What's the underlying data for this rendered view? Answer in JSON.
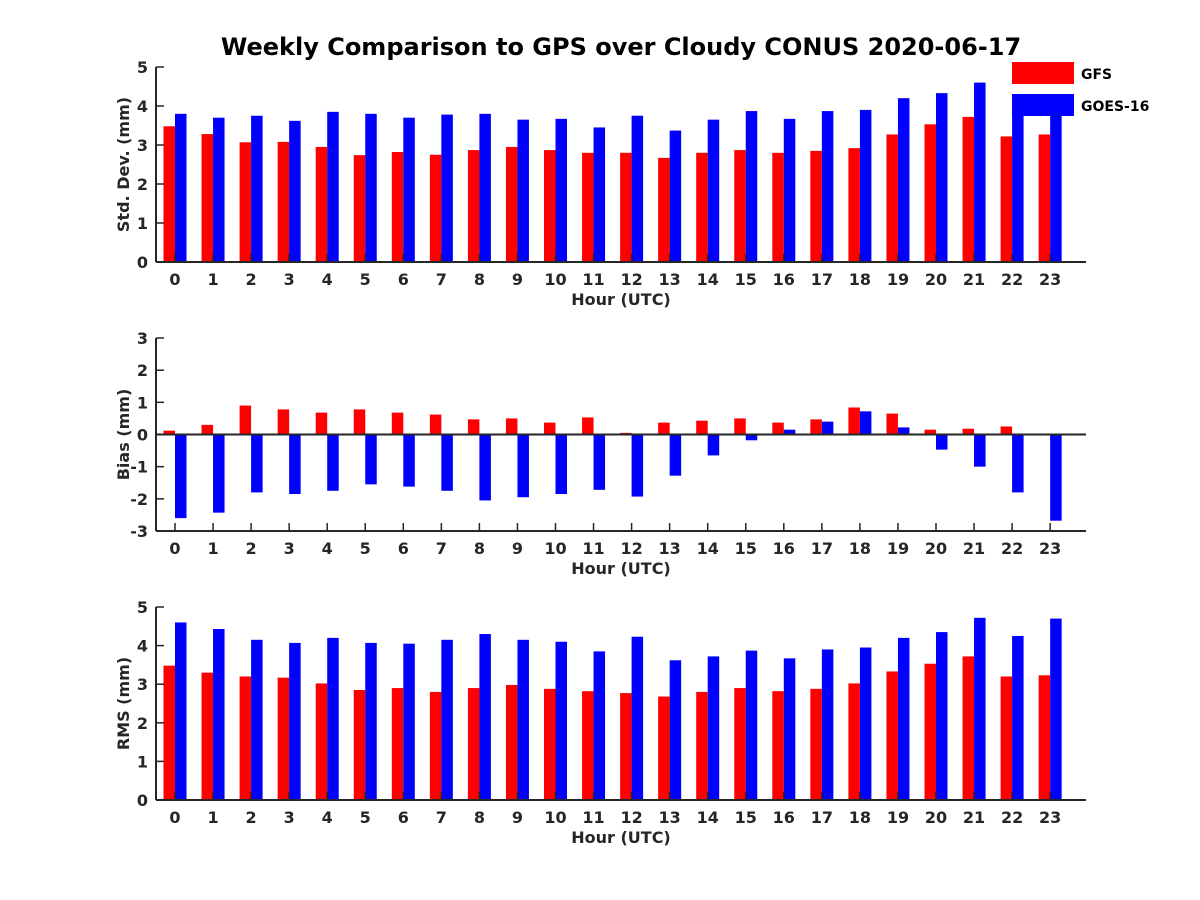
{
  "figure": {
    "title": "Weekly Comparison to GPS over Cloudy CONUS 2020-06-17"
  },
  "legend": {
    "entries": [
      {
        "label": "GFS",
        "color": "#ff0000"
      },
      {
        "label": "GOES-16",
        "color": "#0000ff"
      }
    ],
    "placement": "top-right"
  },
  "chart_data": [
    {
      "type": "bar",
      "xlabel": "Hour (UTC)",
      "ylabel": "Std. Dev. (mm)",
      "ylim": [
        0,
        5
      ],
      "yticks": [
        0,
        1,
        2,
        3,
        4,
        5
      ],
      "categories": [
        "0",
        "1",
        "2",
        "3",
        "4",
        "5",
        "6",
        "7",
        "8",
        "9",
        "10",
        "11",
        "12",
        "13",
        "14",
        "15",
        "16",
        "17",
        "18",
        "19",
        "20",
        "21",
        "22",
        "23"
      ],
      "series": [
        {
          "name": "GFS",
          "color": "#ff0000",
          "values": [
            3.48,
            3.28,
            3.07,
            3.08,
            2.95,
            2.74,
            2.82,
            2.75,
            2.87,
            2.95,
            2.87,
            2.8,
            2.8,
            2.67,
            2.8,
            2.87,
            2.8,
            2.85,
            2.92,
            3.27,
            3.53,
            3.72,
            3.22,
            3.27
          ]
        },
        {
          "name": "GOES-16",
          "color": "#0000ff",
          "values": [
            3.8,
            3.7,
            3.75,
            3.62,
            3.85,
            3.8,
            3.7,
            3.78,
            3.8,
            3.65,
            3.67,
            3.45,
            3.75,
            3.37,
            3.65,
            3.87,
            3.67,
            3.87,
            3.9,
            4.2,
            4.33,
            4.6,
            3.87,
            3.8
          ]
        }
      ],
      "grid": false
    },
    {
      "type": "bar",
      "xlabel": "Hour (UTC)",
      "ylabel": "Bias (mm)",
      "ylim": [
        -3,
        3
      ],
      "yticks": [
        -3,
        -2,
        -1,
        0,
        1,
        2,
        3
      ],
      "categories": [
        "0",
        "1",
        "2",
        "3",
        "4",
        "5",
        "6",
        "7",
        "8",
        "9",
        "10",
        "11",
        "12",
        "13",
        "14",
        "15",
        "16",
        "17",
        "18",
        "19",
        "20",
        "21",
        "22",
        "23"
      ],
      "series": [
        {
          "name": "GFS",
          "color": "#ff0000",
          "values": [
            0.12,
            0.3,
            0.9,
            0.78,
            0.68,
            0.78,
            0.68,
            0.62,
            0.47,
            0.5,
            0.37,
            0.53,
            0.05,
            0.37,
            0.43,
            0.5,
            0.37,
            0.47,
            0.84,
            0.65,
            0.15,
            0.18,
            0.25,
            0.0
          ]
        },
        {
          "name": "GOES-16",
          "color": "#0000ff",
          "values": [
            -2.6,
            -2.43,
            -1.8,
            -1.85,
            -1.75,
            -1.55,
            -1.62,
            -1.75,
            -2.05,
            -1.95,
            -1.85,
            -1.72,
            -1.93,
            -1.28,
            -0.65,
            -0.18,
            0.15,
            0.4,
            0.72,
            0.22,
            -0.47,
            -1.0,
            -1.8,
            -2.68
          ]
        }
      ],
      "grid": false
    },
    {
      "type": "bar",
      "xlabel": "Hour (UTC)",
      "ylabel": "RMS (mm)",
      "ylim": [
        0,
        5
      ],
      "yticks": [
        0,
        1,
        2,
        3,
        4,
        5
      ],
      "categories": [
        "0",
        "1",
        "2",
        "3",
        "4",
        "5",
        "6",
        "7",
        "8",
        "9",
        "10",
        "11",
        "12",
        "13",
        "14",
        "15",
        "16",
        "17",
        "18",
        "19",
        "20",
        "21",
        "22",
        "23"
      ],
      "series": [
        {
          "name": "GFS",
          "color": "#ff0000",
          "values": [
            3.48,
            3.3,
            3.2,
            3.17,
            3.02,
            2.85,
            2.9,
            2.8,
            2.9,
            2.98,
            2.88,
            2.82,
            2.77,
            2.68,
            2.8,
            2.9,
            2.82,
            2.88,
            3.02,
            3.33,
            3.53,
            3.72,
            3.2,
            3.23
          ]
        },
        {
          "name": "GOES-16",
          "color": "#0000ff",
          "values": [
            4.6,
            4.43,
            4.15,
            4.07,
            4.2,
            4.07,
            4.05,
            4.15,
            4.3,
            4.15,
            4.1,
            3.85,
            4.23,
            3.62,
            3.72,
            3.87,
            3.67,
            3.9,
            3.95,
            4.2,
            4.35,
            4.72,
            4.25,
            4.7
          ]
        }
      ],
      "grid": false
    }
  ]
}
